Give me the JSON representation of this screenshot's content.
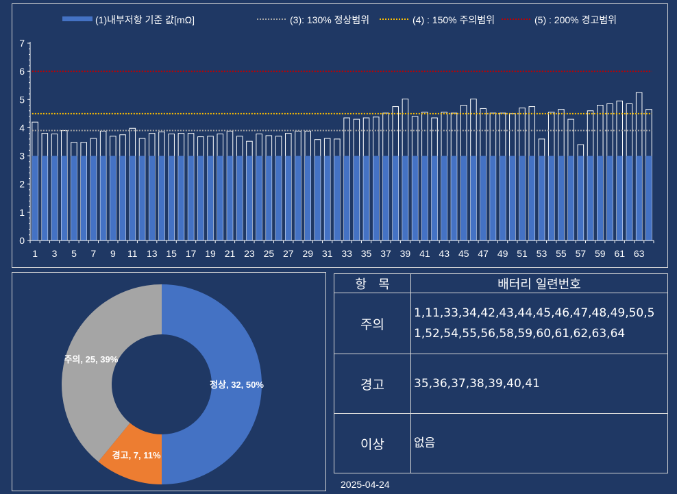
{
  "chart_data": [
    {
      "type": "bar",
      "legend": {
        "placement": "top",
        "entries": [
          {
            "label": "(1)내부저항 기준 값[mΩ]",
            "style": "bar",
            "color": "#4472c4"
          },
          {
            "label": "(3): 130% 정상범위",
            "style": "dotted",
            "color": "#a5a5a5"
          },
          {
            "label": "(4) : 150% 주의범위",
            "style": "dotted",
            "color": "#ffc000"
          },
          {
            "label": "(5) : 200% 경고범위",
            "style": "dotted",
            "color": "#c00000"
          }
        ]
      },
      "categories": [
        1,
        2,
        3,
        4,
        5,
        6,
        7,
        8,
        9,
        10,
        11,
        12,
        13,
        14,
        15,
        16,
        17,
        18,
        19,
        20,
        21,
        22,
        23,
        24,
        25,
        26,
        27,
        28,
        29,
        30,
        31,
        32,
        33,
        34,
        35,
        36,
        37,
        38,
        39,
        40,
        41,
        42,
        43,
        44,
        45,
        46,
        47,
        48,
        49,
        50,
        51,
        52,
        53,
        54,
        55,
        56,
        57,
        58,
        59,
        60,
        61,
        62,
        63,
        64
      ],
      "x_tick_labels": [
        "1",
        "3",
        "5",
        "7",
        "9",
        "11",
        "13",
        "15",
        "17",
        "19",
        "21",
        "23",
        "25",
        "27",
        "29",
        "31",
        "33",
        "35",
        "37",
        "39",
        "41",
        "43",
        "45",
        "47",
        "49",
        "51",
        "53",
        "55",
        "57",
        "59",
        "61",
        "63"
      ],
      "values": [
        4.2,
        3.8,
        3.78,
        3.9,
        3.48,
        3.48,
        3.62,
        3.88,
        3.7,
        3.75,
        3.98,
        3.62,
        3.8,
        3.85,
        3.78,
        3.8,
        3.8,
        3.68,
        3.7,
        3.78,
        3.88,
        3.7,
        3.52,
        3.78,
        3.72,
        3.7,
        3.8,
        3.88,
        3.88,
        3.58,
        3.62,
        3.6,
        4.35,
        4.3,
        4.35,
        4.38,
        4.52,
        4.75,
        5.02,
        4.4,
        4.55,
        4.35,
        4.55,
        4.52,
        4.8,
        5.02,
        4.68,
        4.52,
        4.52,
        4.5,
        4.7,
        4.75,
        3.6,
        4.55,
        4.65,
        4.3,
        3.4,
        4.6,
        4.8,
        4.85,
        4.95,
        4.85,
        5.25,
        4.65
      ],
      "reference_value": 3.0,
      "reference_lines": [
        {
          "name": "130%",
          "value": 3.9,
          "color": "#a5a5a5"
        },
        {
          "name": "150%",
          "value": 4.5,
          "color": "#ffc000"
        },
        {
          "name": "200%",
          "value": 6.0,
          "color": "#c00000"
        }
      ],
      "y_ticks": [
        "0",
        "1",
        "2",
        "3",
        "4",
        "5",
        "6",
        "7"
      ],
      "ylim": [
        0,
        7
      ],
      "grid": false,
      "colors": {
        "bar_fill": "#4472c4",
        "bar_outline": "#ffffff",
        "axis": "#ffffff"
      }
    },
    {
      "type": "pie",
      "style": "donut",
      "slices": [
        {
          "label": "정상, 32, 50%",
          "name": "정상",
          "value": 32,
          "percent": 50,
          "color": "#4472c4"
        },
        {
          "label": "경고, 7, 11%",
          "name": "경고",
          "value": 7,
          "percent": 11,
          "color": "#ed7d31"
        },
        {
          "label": "주의, 25, 39%",
          "name": "주의",
          "value": 25,
          "percent": 39,
          "color": "#a5a5a5"
        }
      ]
    }
  ],
  "table": {
    "header": {
      "col1": "항   목",
      "col2": "배터리 일련번호"
    },
    "rows": [
      {
        "item": "주의",
        "serials": "1,11,33,34,42,43,44,45,46,47,48,49,50,51,52,54,55,56,58,59,60,61,62,63,64"
      },
      {
        "item": "경고",
        "serials": "35,36,37,38,39,40,41"
      },
      {
        "item": "이상",
        "serials": "없음"
      }
    ]
  },
  "footer": {
    "date": "2025-04-24"
  }
}
